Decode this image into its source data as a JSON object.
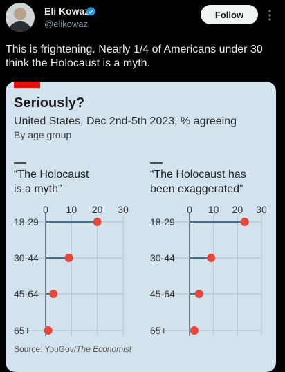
{
  "tweet": {
    "author_name": "Eli Kowaz",
    "author_handle": "@elikowaz",
    "follow_label": "Follow",
    "text": "This is frightening. Nearly 1/4 of Americans under 30 think the Holocaust is a myth.",
    "avatar_icon": "avatar-photo",
    "verified_icon": "verified-badge-icon",
    "more_icon": "more-options-icon",
    "colors": {
      "background": "#000000",
      "verified": "#1d9bf0",
      "follow_button": "#eff3f4"
    }
  },
  "chart": {
    "title": "Seriously?",
    "subtitle": "United States, Dec 2nd-5th 2023, % agreeing",
    "subsubtitle": "By age group",
    "source_prefix": "Source: YouGov/",
    "source_italic": "The Economist",
    "colors": {
      "background": "#d2e3ee",
      "dot": "#e3483a",
      "line": "#4a6e88",
      "accent_bar": "#e3120b"
    }
  },
  "chart_data": [
    {
      "type": "dot",
      "title_line1": "“The Holocaust",
      "title_line2": "is a myth”",
      "categories": [
        "18-29",
        "30-44",
        "45-64",
        "65+"
      ],
      "values": [
        20,
        9,
        3,
        1
      ],
      "xticks": [
        "0",
        "10",
        "20",
        "30"
      ],
      "xlim": [
        0,
        30
      ],
      "grid": true
    },
    {
      "type": "dot",
      "title_line1": "“The Holocaust has",
      "title_line2": "been exaggerated”",
      "categories": [
        "18-29",
        "30-44",
        "45-64",
        "65+"
      ],
      "values": [
        23,
        9,
        4,
        2
      ],
      "xticks": [
        "0",
        "10",
        "20",
        "30"
      ],
      "xlim": [
        0,
        30
      ],
      "grid": true
    }
  ]
}
